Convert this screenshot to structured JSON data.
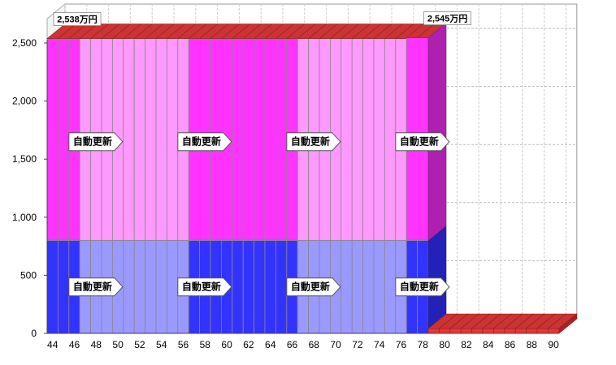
{
  "chart_data": {
    "type": "bar",
    "stacked": true,
    "three_d": true,
    "x": [
      44,
      45,
      46,
      47,
      48,
      49,
      50,
      51,
      52,
      53,
      54,
      55,
      56,
      57,
      58,
      59,
      60,
      61,
      62,
      63,
      64,
      65,
      66,
      67,
      68,
      69,
      70,
      71,
      72,
      73,
      74,
      75,
      76,
      77,
      78,
      79,
      80,
      81,
      82,
      83,
      84,
      85,
      86,
      87,
      88,
      89,
      90
    ],
    "x_tick_labels": [
      "44",
      "46",
      "48",
      "50",
      "52",
      "54",
      "56",
      "58",
      "60",
      "62",
      "64",
      "66",
      "68",
      "70",
      "72",
      "74",
      "76",
      "78",
      "80",
      "82",
      "84",
      "86",
      "88",
      "90"
    ],
    "y_tick_labels": [
      "0",
      "500",
      "1,000",
      "1,500",
      "2,000",
      "2,500"
    ],
    "ylim": [
      0,
      2500
    ],
    "grid": true,
    "series": [
      {
        "values": [
          800,
          800,
          800,
          800,
          800,
          800,
          800,
          800,
          800,
          800,
          800,
          800,
          800,
          800,
          800,
          800,
          800,
          800,
          800,
          800,
          800,
          800,
          800,
          800,
          800,
          800,
          800,
          800,
          800,
          800,
          800,
          800,
          800,
          800,
          800,
          0,
          0,
          0,
          0,
          0,
          0,
          0,
          0,
          0,
          0,
          0,
          0
        ]
      },
      {
        "values": [
          1738,
          1738,
          1738,
          1738,
          1738,
          1738,
          1738,
          1738,
          1738,
          1738,
          1738,
          1738,
          1738,
          1738,
          1738,
          1738,
          1738,
          1738,
          1738,
          1738,
          1738,
          1738,
          1738,
          1738,
          1738,
          1738,
          1738,
          1738,
          1738,
          1738,
          1738,
          1738,
          1738,
          1745,
          1745,
          0,
          0,
          0,
          0,
          0,
          0,
          0,
          0,
          0,
          0,
          0,
          0
        ]
      }
    ],
    "segments": [
      {
        "start": 44,
        "end": 46,
        "dark": true
      },
      {
        "start": 47,
        "end": 56,
        "dark": false
      },
      {
        "start": 57,
        "end": 66,
        "dark": true
      },
      {
        "start": 67,
        "end": 76,
        "dark": false
      },
      {
        "start": 77,
        "end": 78,
        "dark": true
      }
    ],
    "colors": {
      "lower_dark": "#3333ff",
      "lower_light": "#9999ff",
      "upper_dark": "#ff33ff",
      "upper_light": "#ff99ff",
      "top_face": "#cc3333",
      "zero_face": "#ee3333",
      "side_upper": "#b020b0",
      "side_lower": "#2222b8"
    },
    "annotations": [
      {
        "x": 44,
        "text": "2,538万円"
      },
      {
        "x": 78,
        "text": "2,545万円"
      }
    ],
    "arrow_labels": [
      {
        "x": 46,
        "y": 1650,
        "text": "自動更新"
      },
      {
        "x": 56,
        "y": 1650,
        "text": "自動更新"
      },
      {
        "x": 66,
        "y": 1650,
        "text": "自動更新"
      },
      {
        "x": 76,
        "y": 1650,
        "text": "自動更新"
      },
      {
        "x": 46,
        "y": 400,
        "text": "自動更新"
      },
      {
        "x": 56,
        "y": 400,
        "text": "自動更新"
      },
      {
        "x": 66,
        "y": 400,
        "text": "自動更新"
      },
      {
        "x": 76,
        "y": 400,
        "text": "自動更新"
      }
    ]
  }
}
